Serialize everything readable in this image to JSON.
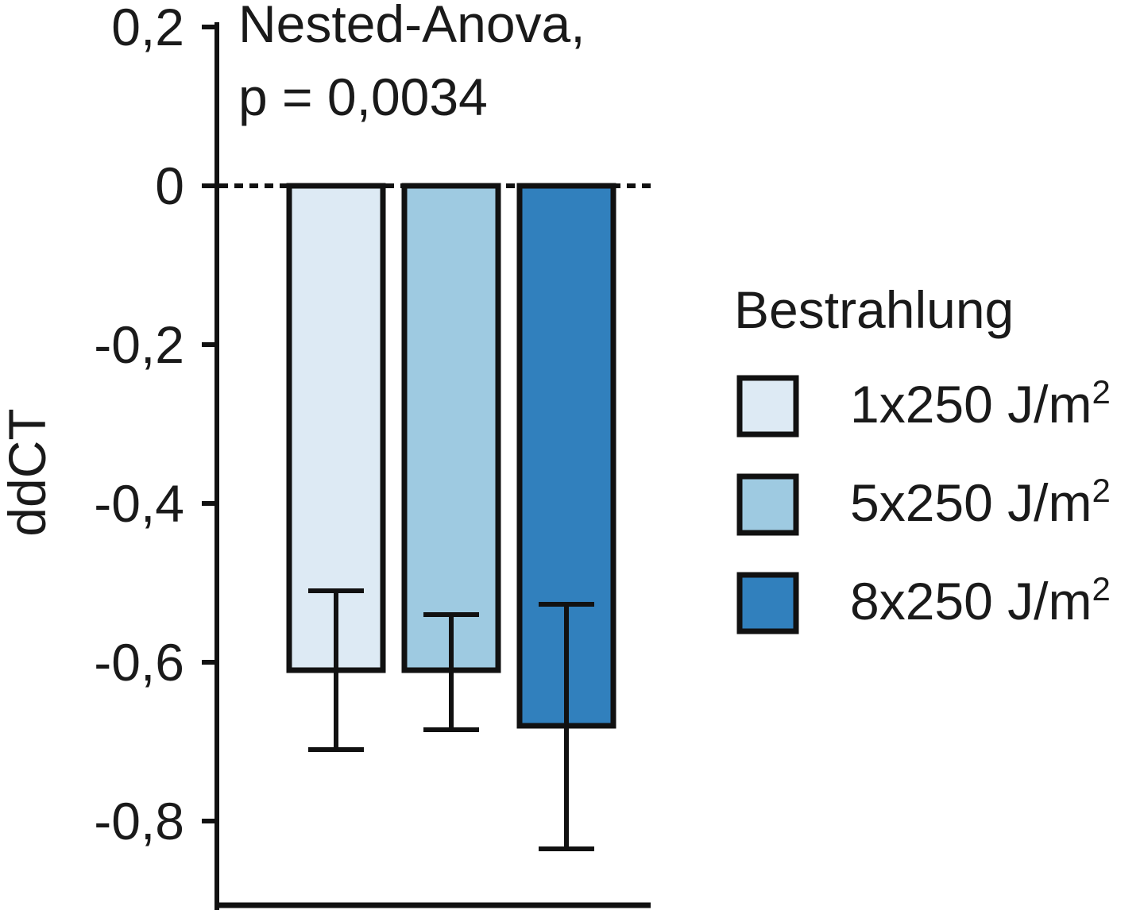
{
  "chart_data": {
    "type": "bar",
    "annotation": [
      "Nested-Anova,",
      "p = 0,0034"
    ],
    "xlabel": "",
    "ylabel": "ddCT",
    "ylim": [
      -0.9,
      0.2
    ],
    "yticks": [
      0.2,
      0,
      -0.2,
      -0.4,
      -0.6,
      -0.8
    ],
    "ytick_labels": [
      "0,2",
      "0",
      "-0,2",
      "-0,4",
      "-0,6",
      "-0,8"
    ],
    "reference_line": {
      "y": 0,
      "style": "dotted"
    },
    "legend": {
      "title": "Bestrahlung",
      "position": "right",
      "entries": [
        {
          "label": "1x250 J/m",
          "superscript": "2"
        },
        {
          "label": "5x250 J/m",
          "superscript": "2"
        },
        {
          "label": "8x250 J/m",
          "superscript": "2"
        }
      ]
    },
    "series": [
      {
        "name": "1x250 J/m2",
        "value": -0.61,
        "error_low": -0.71,
        "error_high": -0.51,
        "color": "#ddeaf4"
      },
      {
        "name": "5x250 J/m2",
        "value": -0.61,
        "error_low": -0.685,
        "error_high": -0.54,
        "color": "#9ecae1"
      },
      {
        "name": "8x250 J/m2",
        "value": -0.68,
        "error_low": -0.835,
        "error_high": -0.527,
        "color": "#3180bd"
      }
    ],
    "colors": {
      "axis": "#111111",
      "bar_stroke": "#111111"
    }
  }
}
